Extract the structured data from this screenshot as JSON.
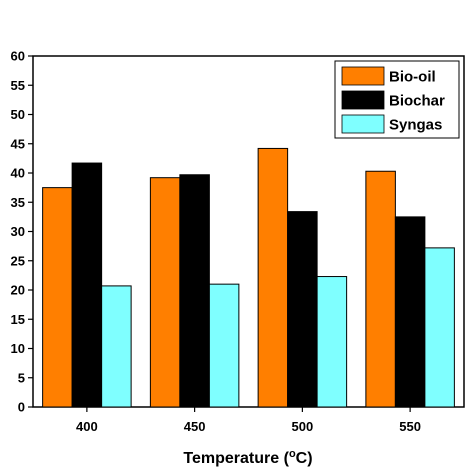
{
  "chart_data": {
    "type": "bar",
    "categories": [
      "400",
      "450",
      "500",
      "550"
    ],
    "series": [
      {
        "name": "Bio-oil",
        "color": "#ff7f00",
        "values": [
          37.5,
          39.2,
          44.2,
          40.3
        ]
      },
      {
        "name": "Biochar",
        "color": "#000000",
        "values": [
          41.7,
          39.7,
          33.4,
          32.5
        ]
      },
      {
        "name": "Syngas",
        "color": "#7fffff",
        "values": [
          20.7,
          21.0,
          22.3,
          27.2
        ]
      }
    ],
    "xlabel": "Temperature (",
    "xlabel_sup": "o",
    "xlabel_end": "C)",
    "ylabel": "",
    "ylim": [
      0,
      60
    ],
    "yticks": [
      "0",
      "5",
      "10",
      "15",
      "20",
      "25",
      "30",
      "35",
      "40",
      "45",
      "50",
      "55",
      "60"
    ],
    "grid": false,
    "legend": "top-right"
  }
}
